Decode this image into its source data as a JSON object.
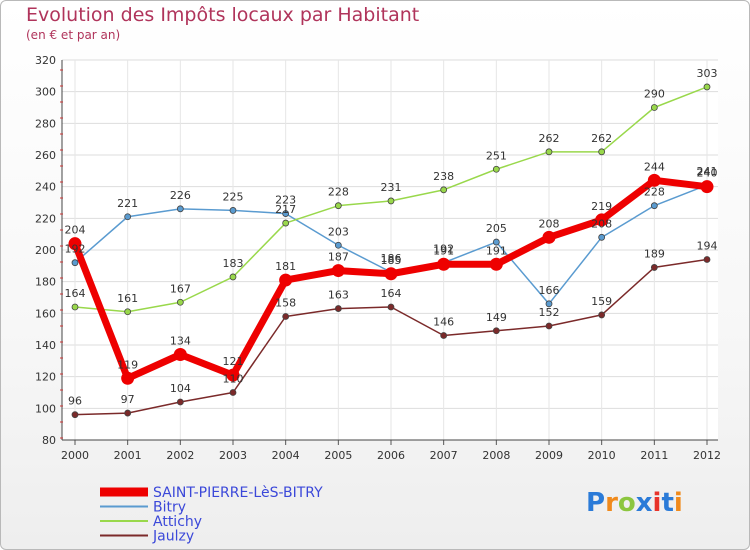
{
  "title": "Evolution des Impôts locaux par Habitant",
  "subtitle": "(en € et par an)",
  "logo_text": "Proxiti",
  "chart_data": {
    "type": "line",
    "x": [
      "2000",
      "2001",
      "2002",
      "2003",
      "2004",
      "2005",
      "2006",
      "2007",
      "2008",
      "2009",
      "2010",
      "2011",
      "2012"
    ],
    "ylim": [
      80,
      320
    ],
    "yticks": [
      80,
      100,
      120,
      140,
      160,
      180,
      200,
      220,
      240,
      260,
      280,
      300,
      320
    ],
    "grid": true,
    "legend_position": "bottom-left",
    "series": [
      {
        "name": "SAINT-PIERRE-LèS-BITRY",
        "color": "#ee0000",
        "values": [
          204,
          119,
          134,
          121,
          181,
          187,
          185,
          191,
          191,
          208,
          219,
          244,
          240
        ]
      },
      {
        "name": "Bitry",
        "color": "#5a9bd0",
        "values": [
          192,
          221,
          226,
          225,
          223,
          203,
          186,
          192,
          205,
          166,
          208,
          228,
          241
        ]
      },
      {
        "name": "Attichy",
        "color": "#99d84b",
        "values": [
          164,
          161,
          167,
          183,
          217,
          228,
          231,
          238,
          251,
          262,
          262,
          290,
          303
        ]
      },
      {
        "name": "Jaulzy",
        "color": "#7b2a2a",
        "values": [
          96,
          97,
          104,
          110,
          158,
          163,
          164,
          146,
          149,
          152,
          159,
          189,
          194
        ]
      }
    ]
  }
}
